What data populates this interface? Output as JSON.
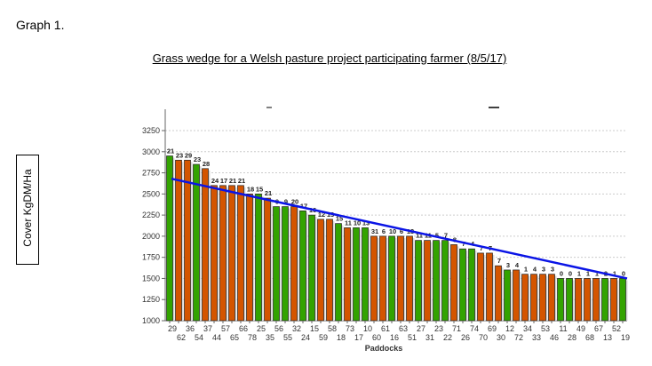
{
  "graph_label": "Graph 1.",
  "chart_data": {
    "type": "bar",
    "title": "Grass wedge for a Welsh pasture project participating farmer (8/5/17)",
    "xlabel": "Paddocks",
    "ylabel": "Cover KgDM/Ha",
    "ylim": [
      1000,
      3250
    ],
    "yticks": [
      "1000",
      "1250",
      "1500",
      "1750",
      "2000",
      "2250",
      "2500",
      "2750",
      "3000",
      "3250"
    ],
    "grid": true,
    "colors": {
      "green": "#33a300",
      "orange": "#d45500",
      "target": "#0a14e6"
    },
    "categories": [
      "29",
      "62",
      "36",
      "54",
      "37",
      "44",
      "57",
      "65",
      "66",
      "78",
      "25",
      "35",
      "56",
      "55",
      "32",
      "24",
      "15",
      "59",
      "58",
      "18",
      "73",
      "17",
      "10",
      "60",
      "61",
      "16",
      "63",
      "51",
      "27",
      "31",
      "23",
      "22",
      "71",
      "26",
      "74",
      "70",
      "69",
      "30",
      "12",
      "72",
      "34",
      "33",
      "53",
      "46",
      "11",
      "28",
      "49",
      "68",
      "67",
      "13",
      "52",
      "19"
    ],
    "values": [
      2950,
      2900,
      2900,
      2850,
      2800,
      2600,
      2600,
      2600,
      2600,
      2500,
      2500,
      2450,
      2350,
      2350,
      2350,
      2300,
      2250,
      2200,
      2200,
      2150,
      2100,
      2100,
      2100,
      2000,
      2000,
      2000,
      2000,
      2000,
      1950,
      1950,
      1950,
      1950,
      1900,
      1850,
      1850,
      1800,
      1800,
      1650,
      1600,
      1600,
      1550,
      1550,
      1550,
      1550,
      1500,
      1500,
      1500,
      1500,
      1500,
      1500,
      1500,
      1500
    ],
    "bar_colors": [
      "green",
      "orange",
      "orange",
      "green",
      "orange",
      "orange",
      "orange",
      "orange",
      "orange",
      "orange",
      "green",
      "orange",
      "green",
      "green",
      "orange",
      "green",
      "green",
      "orange",
      "orange",
      "green",
      "orange",
      "green",
      "green",
      "orange",
      "orange",
      "green",
      "orange",
      "orange",
      "green",
      "orange",
      "green",
      "green",
      "orange",
      "green",
      "green",
      "orange",
      "orange",
      "orange",
      "green",
      "orange",
      "orange",
      "orange",
      "orange",
      "orange",
      "green",
      "green",
      "orange",
      "orange",
      "orange",
      "green",
      "orange",
      "green"
    ],
    "data_labels": [
      "21",
      "23",
      "29",
      "23",
      "28",
      "24",
      "17",
      "21",
      "21",
      "18",
      "15",
      "21",
      "9",
      "9",
      "20",
      "17",
      "16",
      "12",
      "13",
      "15",
      "11",
      "10",
      "13",
      "31",
      "6",
      "10",
      "6",
      "13",
      "11",
      "11",
      "5",
      "7",
      "8",
      "7",
      "4",
      "7",
      "7",
      "7",
      "3",
      "4",
      "1",
      "4",
      "3",
      "3",
      "0",
      "0",
      "1",
      "1",
      "1",
      "2",
      "1",
      "0"
    ],
    "target_line": {
      "start": 2680,
      "end": 1500
    }
  }
}
